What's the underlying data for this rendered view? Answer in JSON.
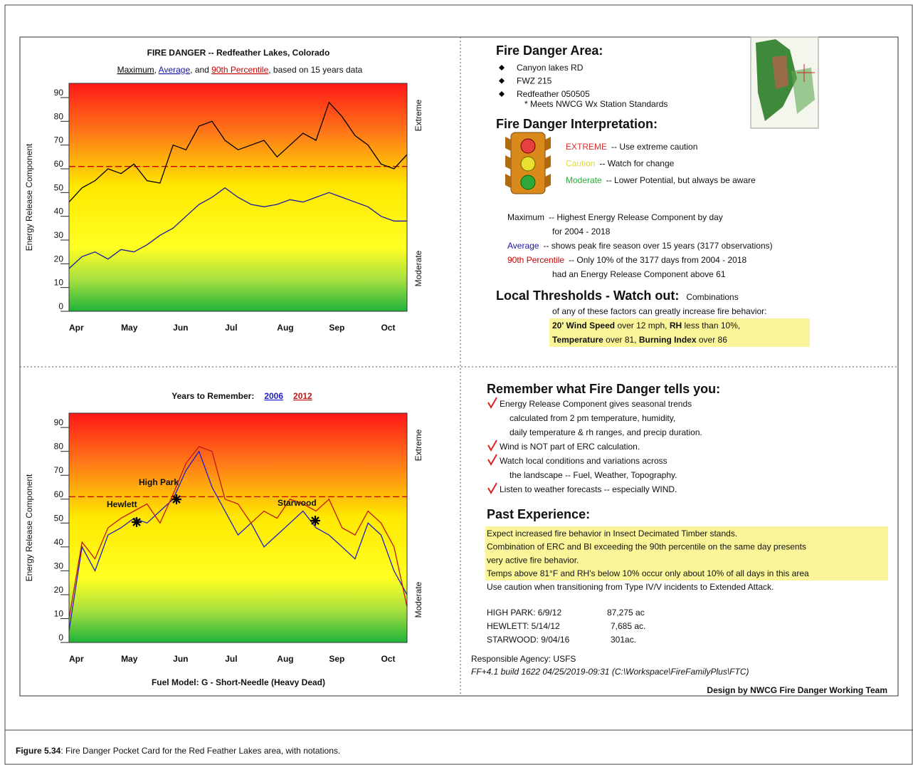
{
  "chart_data": [
    {
      "type": "line",
      "title": "FIRE DANGER -- Redfeather Lakes, Colorado",
      "subtitle_parts": [
        ", ",
        ", and ",
        ", based on 15 years data"
      ],
      "y_label": "Energy Release Component",
      "side_labels": [
        "Extreme",
        "Moderate"
      ],
      "categories": [
        "Apr",
        null,
        null,
        null,
        "May",
        null,
        null,
        null,
        "Jun",
        null,
        null,
        null,
        "Jul",
        null,
        null,
        null,
        "Aug",
        null,
        null,
        null,
        "Sep",
        null,
        null,
        null,
        "Oct",
        null,
        null
      ],
      "series": [
        {
          "name": "Maximum",
          "color": "#000000",
          "values": [
            46,
            52,
            55,
            60,
            58,
            62,
            55,
            54,
            70,
            68,
            78,
            80,
            72,
            68,
            70,
            72,
            65,
            70,
            75,
            72,
            88,
            82,
            74,
            70,
            62,
            60,
            66
          ]
        },
        {
          "name": "Average",
          "color": "#1a1aa0",
          "values": [
            18,
            23,
            25,
            22,
            26,
            25,
            28,
            32,
            35,
            40,
            45,
            48,
            52,
            48,
            45,
            44,
            45,
            47,
            46,
            48,
            50,
            48,
            46,
            44,
            40,
            38,
            38
          ]
        }
      ],
      "reference_lines": [
        {
          "name": "90th Percentile",
          "value": 61,
          "color": "#cc0000"
        }
      ],
      "ylim": [
        0,
        96
      ],
      "yticks": [
        0,
        10,
        20,
        30,
        40,
        50,
        60,
        70,
        80,
        90
      ]
    },
    {
      "type": "line",
      "title": "Years to Remember:",
      "footer": "Fuel Model: G - Short-Needle (Heavy Dead)",
      "y_label": "Energy Release Component",
      "side_labels": [
        "Extreme",
        "Moderate"
      ],
      "categories": [
        "Apr",
        null,
        null,
        null,
        "May",
        null,
        null,
        null,
        "Jun",
        null,
        null,
        null,
        "Jul",
        null,
        null,
        null,
        "Aug",
        null,
        null,
        null,
        "Sep",
        null,
        null,
        null,
        "Oct",
        null,
        null
      ],
      "series": [
        {
          "name": "2006",
          "color": "#2020c0",
          "values": [
            5,
            40,
            30,
            45,
            48,
            52,
            50,
            55,
            60,
            72,
            80,
            65,
            55,
            45,
            50,
            40,
            45,
            50,
            55,
            48,
            45,
            40,
            35,
            50,
            45,
            30,
            20
          ]
        },
        {
          "name": "2012",
          "color": "#c01818",
          "values": [
            10,
            42,
            35,
            48,
            52,
            55,
            58,
            50,
            62,
            75,
            82,
            80,
            60,
            58,
            50,
            55,
            52,
            60,
            58,
            55,
            60,
            48,
            45,
            55,
            50,
            40,
            15
          ]
        }
      ],
      "reference_lines": [
        {
          "value": 61,
          "color": "#cc0000"
        }
      ],
      "annotations": [
        "Hewlett",
        "High Park",
        "Starwood"
      ],
      "ylim": [
        0,
        96
      ],
      "yticks": [
        0,
        10,
        20,
        30,
        40,
        50,
        60,
        70,
        80,
        90
      ]
    }
  ],
  "document": {
    "area": {
      "heading": "Fire Danger Area:",
      "items": [
        "Canyon lakes RD",
        "FWZ 215",
        "Redfeather 050505"
      ],
      "note": "* Meets NWCG Wx Station Standards"
    },
    "interpretation": {
      "heading": "Fire Danger Interpretation:",
      "levels": [
        {
          "label": "EXTREME",
          "text": "-- Use extreme caution",
          "color": "#e03030"
        },
        {
          "label": "Caution",
          "text": "-- Watch for change",
          "color": "#e0d840"
        },
        {
          "label": "Moderate",
          "text": "-- Lower Potential, but always be aware",
          "color": "#2faa3a"
        }
      ]
    },
    "definitions": [
      {
        "term": "Maximum",
        "color": "#111111",
        "lines": [
          "-- Highest Energy Release Component by day",
          "for 2004 - 2018"
        ]
      },
      {
        "term": "Average",
        "color": "#1a1aa0",
        "lines": [
          "-- shows peak fire season over 15 years (3177 observations)"
        ]
      },
      {
        "term": "90th Percentile",
        "color": "#cc0000",
        "lines": [
          "-- Only 10% of the 3177 days from 2004 - 2018",
          "had an Energy Release Component above 61"
        ]
      }
    ],
    "thresholds": {
      "heading": "Local Thresholds - Watch out:",
      "lead": "Combinations",
      "text": "of any of these factors can greatly increase fire behavior:",
      "lines": [
        [
          {
            "text": "20' Wind Speed",
            "bold": true
          },
          {
            "text": " over 12 mph,"
          },
          {
            "text": " RH",
            "bold": true
          },
          {
            "text": " less than 10%,"
          }
        ],
        [
          {
            "text": "Temperature",
            "bold": true
          },
          {
            "text": " over 81,"
          },
          {
            "text": " Burning Index",
            "bold": true
          },
          {
            "text": " over 86"
          }
        ]
      ]
    },
    "remember": {
      "heading": "Remember what Fire Danger tells you:",
      "items": [
        [
          "Energy Release Component gives seasonal trends",
          "calculated from 2 pm temperature, humidity,",
          "daily temperature & rh ranges, and precip duration."
        ],
        [
          "Wind is NOT part of ERC calculation."
        ],
        [
          "Watch local conditions and variations across",
          "the landscape -- Fuel, Weather, Topography."
        ],
        [
          "Listen to weather forecasts -- especially WIND."
        ]
      ]
    },
    "past": {
      "heading": "Past Experience:",
      "highlighted": [
        "Expect increased fire behavior in Insect Decimated Timber stands.",
        "Combination of ERC and BI exceeding the 90th percentile on the same day presents",
        "very active fire behavior.",
        "Temps above 81°F and RH's below 10% occur only about 10% of all days in this area"
      ],
      "note": "Use caution when transitioning from Type IV/V incidents to Extended Attack."
    },
    "fires": [
      [
        "HIGH PARK: 6/9/12",
        "87,275 ac"
      ],
      [
        "HEWLETT:  5/14/12",
        "7,685 ac."
      ],
      [
        "STARWOOD:  9/04/16",
        "301ac."
      ]
    ],
    "agency": "Responsible Agency: USFS",
    "build": "FF+4.1 build 1622 04/25/2019-09:31 (C:\\Workspace\\FireFamilyPlus\\FTC)",
    "credit": "Design by NWCG Fire Danger Working Team",
    "caption": {
      "label": "Figure 5.34",
      "text": ": Fire Danger Pocket Card for the Red Feather Lakes area, with notations."
    }
  }
}
